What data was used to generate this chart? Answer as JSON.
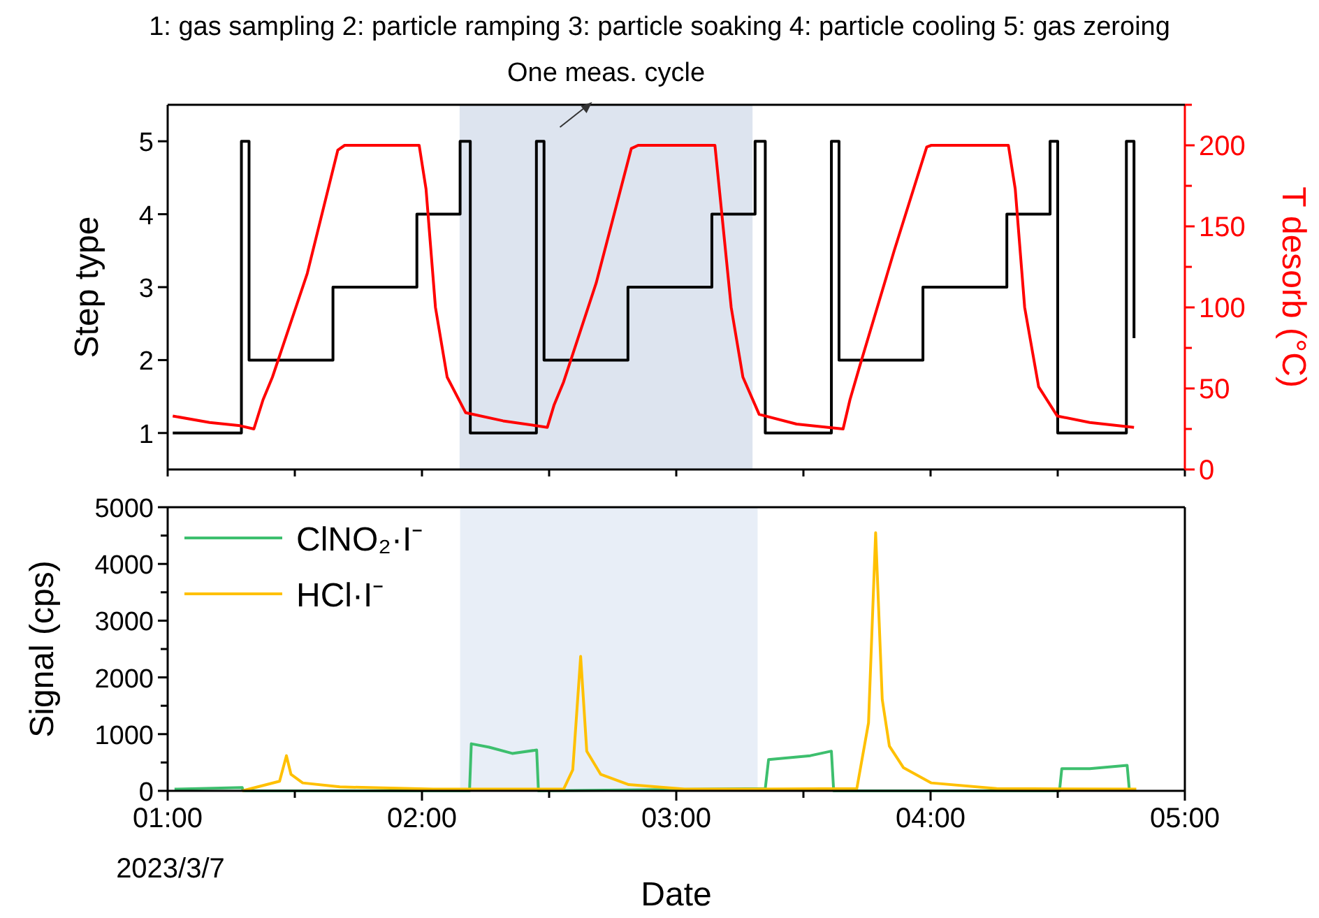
{
  "chart_data": [
    {
      "type": "line",
      "title": "1: gas sampling 2: particle ramping 3: particle soaking 4: particle cooling 5: gas zeroing",
      "ylabel": "Step type",
      "y2label": "T desorb (°C)",
      "xlim": [
        1,
        5
      ],
      "xticks": [
        {
          "value": 1,
          "label": null
        },
        {
          "value": 1.5,
          "label": null
        },
        {
          "value": 2,
          "label": null
        },
        {
          "value": 2.5,
          "label": null
        },
        {
          "value": 3,
          "label": null
        },
        {
          "value": 3.5,
          "label": null
        },
        {
          "value": 4,
          "label": null
        },
        {
          "value": 4.5,
          "label": null
        },
        {
          "value": 5,
          "label": null
        }
      ],
      "ylim": [
        0.5,
        5.5
      ],
      "yticks": [
        1,
        2,
        3,
        4,
        5
      ],
      "y2lim": [
        0,
        225
      ],
      "y2ticks": [
        0,
        {
          "value": 25,
          "label": null
        },
        50,
        {
          "value": 75,
          "label": null
        },
        100,
        {
          "value": 125,
          "label": null
        },
        150,
        {
          "value": 175,
          "label": null
        },
        200,
        {
          "value": 225,
          "label": null
        }
      ],
      "tick_labels": "y",
      "grid": false,
      "legend": false,
      "bands": [
        {
          "axis": "x",
          "from": 2.148,
          "to": 3.3,
          "color": "#dde4ef"
        }
      ],
      "annotations": [
        "One meas. cycle"
      ],
      "series": [
        {
          "type": "step",
          "color": "#000000",
          "x": [
            1.02,
            1.29,
            1.32,
            1.65,
            1.98,
            2.15,
            2.19,
            2.45,
            2.48,
            2.81,
            3.14,
            3.31,
            3.35,
            3.61,
            3.64,
            3.97,
            4.3,
            4.47,
            4.5,
            4.77,
            4.8,
            4.8
          ],
          "values": [
            1,
            5,
            2,
            3,
            4,
            5,
            1,
            5,
            2,
            3,
            4,
            5,
            1,
            5,
            2,
            3,
            4,
            5,
            1,
            5,
            2.3,
            2.3
          ]
        },
        {
          "axis": "y2",
          "color": "#ff0000",
          "x": [
            1.02,
            1.165,
            1.284,
            1.339,
            1.375,
            1.412,
            1.549,
            1.669,
            1.696,
            1.989,
            2.016,
            2.053,
            2.099,
            2.172,
            2.319,
            2.493,
            2.52,
            2.557,
            2.685,
            2.823,
            2.85,
            3.152,
            3.179,
            3.216,
            3.262,
            3.326,
            3.473,
            3.656,
            3.683,
            3.72,
            3.857,
            3.985,
            4.003,
            4.306,
            4.333,
            4.37,
            4.425,
            4.498,
            4.626,
            4.8
          ],
          "values": [
            33,
            29,
            27,
            25,
            43,
            57,
            121,
            197,
            200,
            200,
            173,
            100,
            57,
            35,
            30,
            26,
            40,
            54,
            115,
            198,
            200,
            200,
            158,
            100,
            57,
            34,
            28,
            25,
            43,
            63,
            135,
            199,
            200,
            200,
            173,
            100,
            51,
            33,
            29,
            26
          ]
        }
      ]
    },
    {
      "type": "line",
      "xlabel": "Date",
      "ylabel": "Signal (cps)",
      "xlim": [
        1,
        5
      ],
      "xticks": [
        {
          "value": 1,
          "label": "01:00"
        },
        {
          "value": 1.5,
          "label": null
        },
        {
          "value": 2,
          "label": "02:00"
        },
        {
          "value": 2.5,
          "label": null
        },
        {
          "value": 3,
          "label": "03:00"
        },
        {
          "value": 3.5,
          "label": null
        },
        {
          "value": 4,
          "label": "04:00"
        },
        {
          "value": 4.5,
          "label": null
        },
        {
          "value": 5,
          "label": "05:00"
        }
      ],
      "ylim": [
        0,
        5000
      ],
      "yticks": [
        0,
        {
          "value": 500,
          "label": null
        },
        1000,
        {
          "value": 1500,
          "label": null
        },
        2000,
        {
          "value": 2500,
          "label": null
        },
        3000,
        {
          "value": 3500,
          "label": null
        },
        4000,
        {
          "value": 4500,
          "label": null
        },
        5000
      ],
      "grid": false,
      "legend": "top left",
      "bands": [
        {
          "axis": "x",
          "from": 2.15,
          "to": 3.32,
          "color": "#e8eef7"
        }
      ],
      "annotations": [
        "2023/3/7"
      ],
      "series": [
        {
          "name": "ClNO₂·I⁻",
          "color": "#3dbf6e",
          "x": [
            1.027,
            1.293,
            1.297,
            2.187,
            2.194,
            2.264,
            2.355,
            2.451,
            2.458,
            3.35,
            3.363,
            3.527,
            3.61,
            3.619,
            4.507,
            4.516,
            4.626,
            4.773,
            4.782
          ],
          "values": [
            30,
            60,
            0,
            0,
            830,
            770,
            660,
            720,
            0,
            40,
            550,
            620,
            700,
            0,
            0,
            390,
            390,
            450,
            0
          ]
        },
        {
          "name": "HCl·I⁻",
          "color": "#ffc000",
          "x": [
            1.293,
            1.44,
            1.467,
            1.485,
            1.531,
            1.677,
            2.044,
            2.557,
            2.593,
            2.624,
            2.648,
            2.703,
            2.813,
            3.033,
            3.308,
            3.71,
            3.756,
            3.784,
            3.81,
            3.838,
            3.893,
            4.003,
            4.26,
            4.809
          ],
          "values": [
            0,
            170,
            620,
            290,
            140,
            70,
            30,
            30,
            370,
            2370,
            700,
            290,
            110,
            30,
            30,
            40,
            1200,
            4550,
            1610,
            790,
            410,
            140,
            40,
            30
          ]
        }
      ]
    }
  ]
}
